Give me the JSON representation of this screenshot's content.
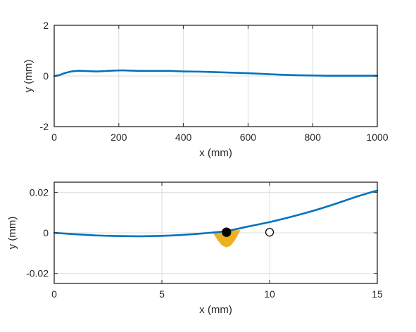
{
  "colors": {
    "line": "#0072BD",
    "fill": "#EDB120",
    "grid": "#DCDCDC",
    "axes": "#262626"
  },
  "chart_data": [
    {
      "type": "line",
      "title": "",
      "xlabel": "x (mm)",
      "ylabel": "y (mm)",
      "xlim": [
        0,
        1000
      ],
      "ylim": [
        -2,
        2
      ],
      "xticks": [
        0,
        200,
        400,
        600,
        800,
        1000
      ],
      "xtick_labels": [
        "0",
        "200",
        "400",
        "600",
        "800",
        "1000"
      ],
      "yticks": [
        -2,
        0,
        2
      ],
      "ytick_labels": [
        "-2",
        "0",
        "2"
      ],
      "grid": true,
      "series": [
        {
          "x": [
            0,
            15,
            30,
            50,
            70,
            90,
            110,
            130,
            150,
            180,
            210,
            240,
            270,
            300,
            330,
            360,
            400,
            450,
            500,
            550,
            600,
            650,
            700,
            750,
            800,
            850,
            900,
            950,
            1000
          ],
          "y": [
            0.0,
            0.03,
            0.1,
            0.17,
            0.2,
            0.2,
            0.19,
            0.18,
            0.19,
            0.21,
            0.22,
            0.21,
            0.2,
            0.2,
            0.2,
            0.2,
            0.18,
            0.17,
            0.15,
            0.13,
            0.11,
            0.08,
            0.05,
            0.03,
            0.02,
            0.01,
            0.01,
            0.01,
            0.01
          ]
        }
      ]
    },
    {
      "type": "line",
      "title": "",
      "xlabel": "x (mm)",
      "ylabel": "y (mm)",
      "xlim": [
        0,
        15
      ],
      "ylim": [
        -0.025,
        0.025
      ],
      "xticks": [
        0,
        5,
        10,
        15
      ],
      "xtick_labels": [
        "0",
        "5",
        "10",
        "15"
      ],
      "yticks": [
        -0.02,
        0,
        0.02
      ],
      "ytick_labels": [
        "-0.02",
        "0",
        "0.02"
      ],
      "grid": true,
      "series": [
        {
          "x": [
            0,
            1,
            2,
            3,
            4,
            5,
            6,
            7,
            8,
            9,
            10,
            11,
            12,
            13,
            14,
            15
          ],
          "y": [
            0,
            -0.0007,
            -0.0013,
            -0.0016,
            -0.0017,
            -0.0015,
            -0.001,
            -0.0002,
            0.0009,
            0.0031,
            0.0053,
            0.0079,
            0.0108,
            0.0141,
            0.0177,
            0.0209
          ]
        }
      ],
      "fill_region": {
        "x": [
          7.35,
          7.6,
          7.8,
          8.0,
          8.2,
          8.4,
          8.65
        ],
        "y_upper": [
          0.0003,
          0.0006,
          0.0008,
          0.0009,
          0.001,
          0.0012,
          0.0014
        ],
        "y_lower": [
          0.0003,
          -0.0038,
          -0.0063,
          -0.0072,
          -0.0063,
          -0.0035,
          0.0014
        ]
      },
      "markers": [
        {
          "x": 8,
          "y": 0.0003,
          "style": "filled"
        },
        {
          "x": 10,
          "y": 0.0003,
          "style": "open"
        }
      ]
    }
  ]
}
